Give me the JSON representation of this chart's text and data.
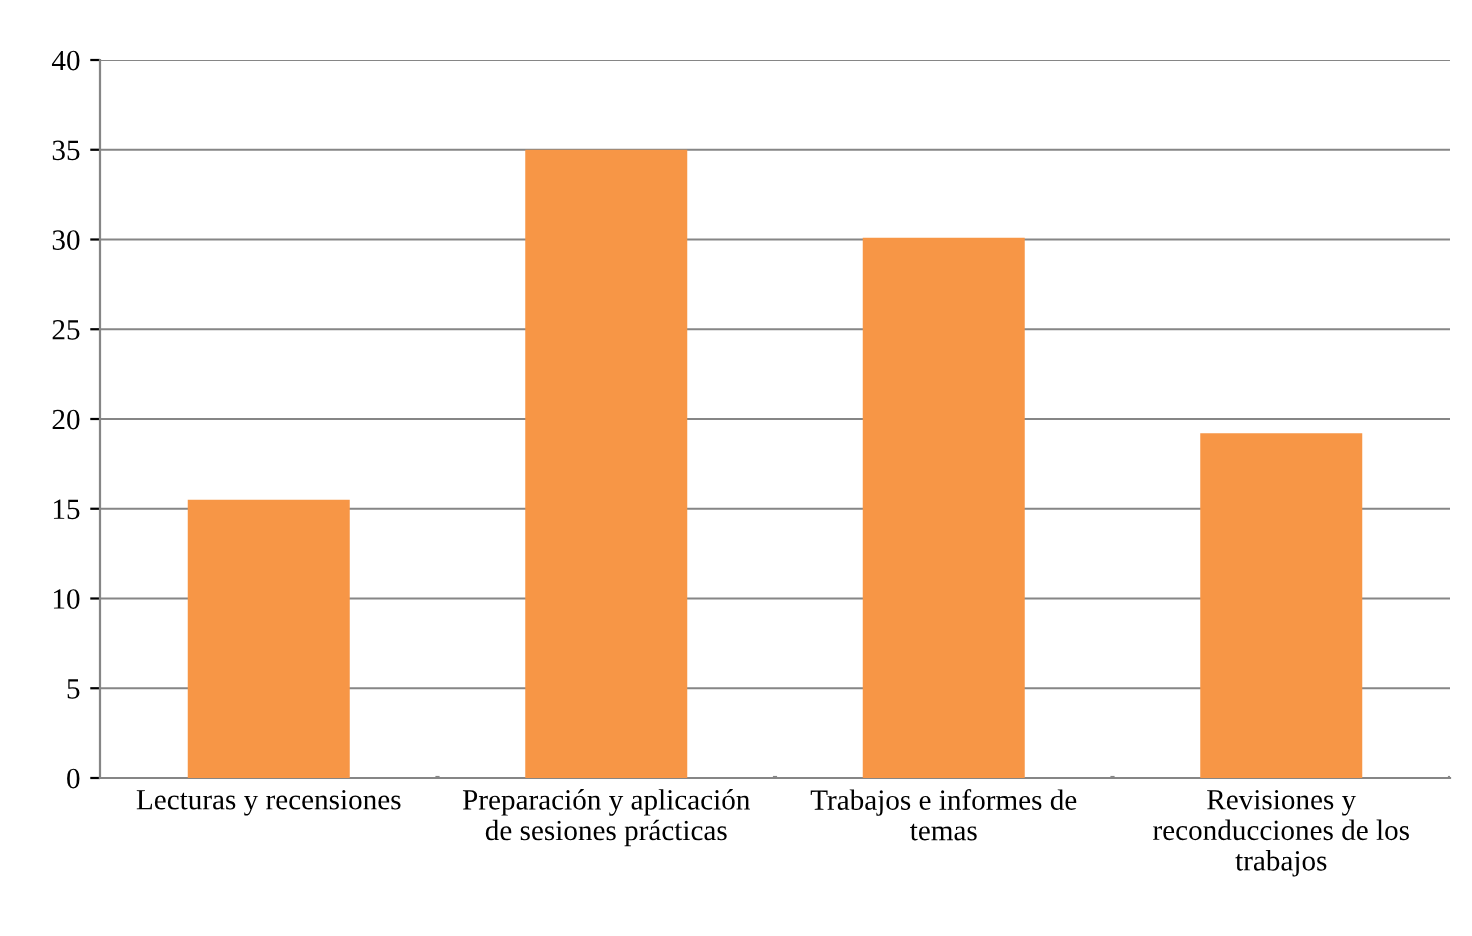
{
  "chart_data": {
    "type": "bar",
    "categories": [
      "Lecturas y recensiones",
      "Preparación y aplicación\nde sesiones prácticas",
      "Trabajos e informes de\ntemas",
      "Revisiones y\nreconducciones de los\ntrabajos"
    ],
    "values": [
      15.5,
      35.0,
      30.1,
      19.2
    ],
    "color": "#f79646",
    "ylim": [
      0,
      40
    ],
    "yticks": [
      0,
      5,
      10,
      15,
      20,
      25,
      30,
      35,
      40
    ],
    "grid": "y",
    "legend": false
  }
}
